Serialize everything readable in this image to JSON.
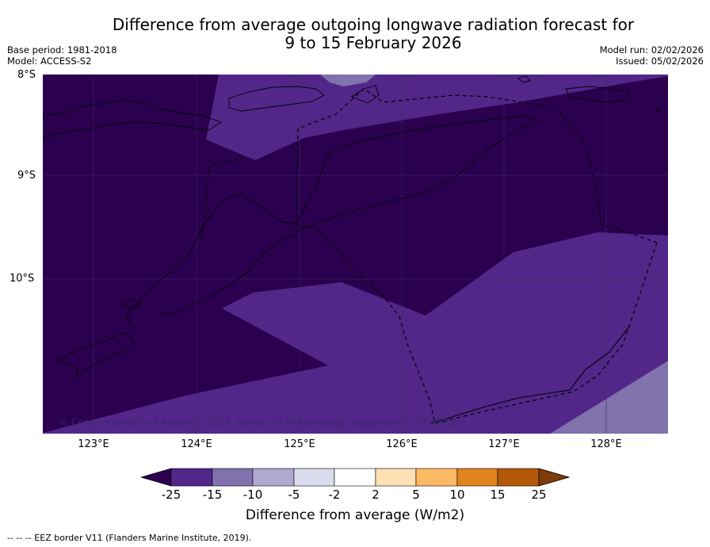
{
  "title": {
    "line1": "Difference from average outgoing longwave radiation forecast for",
    "line2": "9 to 15 February 2026"
  },
  "meta": {
    "base_period": "Base period: 1981-2018",
    "model": "Model: ACCESS-S2",
    "model_run": "Model run: 02/02/2026",
    "issued": "Issued: 05/02/2026"
  },
  "axes": {
    "lat_labels": [
      "8°S",
      "9°S",
      "10°S"
    ],
    "lon_labels": [
      "123°E",
      "124°E",
      "125°E",
      "126°E",
      "127°E",
      "128°E"
    ]
  },
  "copyright": "© Commonwealth of Australia 2026, Bureau of Meteorology, supported by COSPPac",
  "colorbar": {
    "title": "Difference from average (W/m2)",
    "ticks": [
      "-25",
      "-15",
      "-10",
      "-5",
      "-2",
      "2",
      "5",
      "10",
      "15",
      "25"
    ],
    "colors": [
      "#2b004f",
      "#522789",
      "#7f72ad",
      "#b0a8d1",
      "#dadbec",
      "#ffffff",
      "#fee0b5",
      "#fdb864",
      "#e08420",
      "#b35806",
      "#7f3b08"
    ]
  },
  "footnote": "--  --  -- EEZ border V11 (Flanders Marine Institute, 2019)."
}
